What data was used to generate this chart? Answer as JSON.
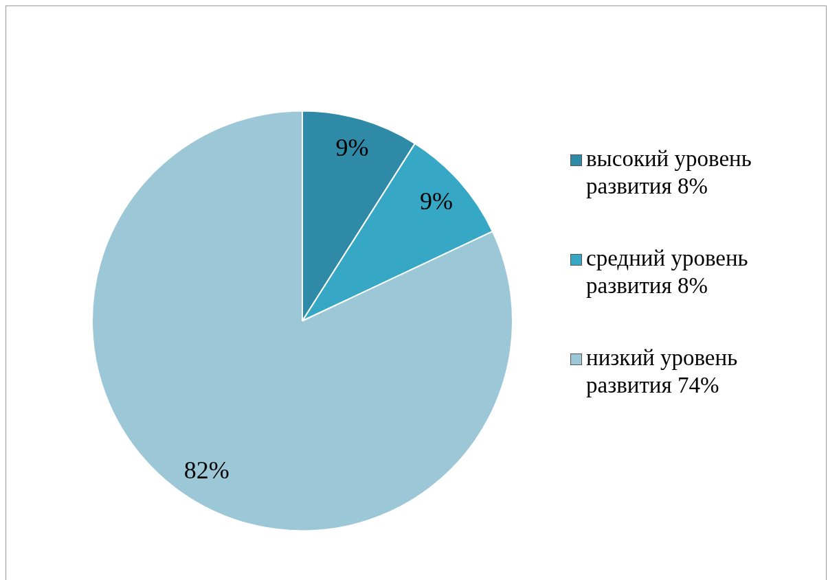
{
  "chart_data": {
    "type": "pie",
    "categories": [
      "высокий уровень развития 8%",
      "средний уровень развития 8%",
      "низкий уровень развития 74%"
    ],
    "values": [
      9,
      9,
      82
    ],
    "colors": [
      "#2e8aa6",
      "#36a8c6",
      "#9cc7d7"
    ],
    "value_labels": [
      "9%",
      "9%",
      "82%"
    ],
    "legend": "right"
  }
}
